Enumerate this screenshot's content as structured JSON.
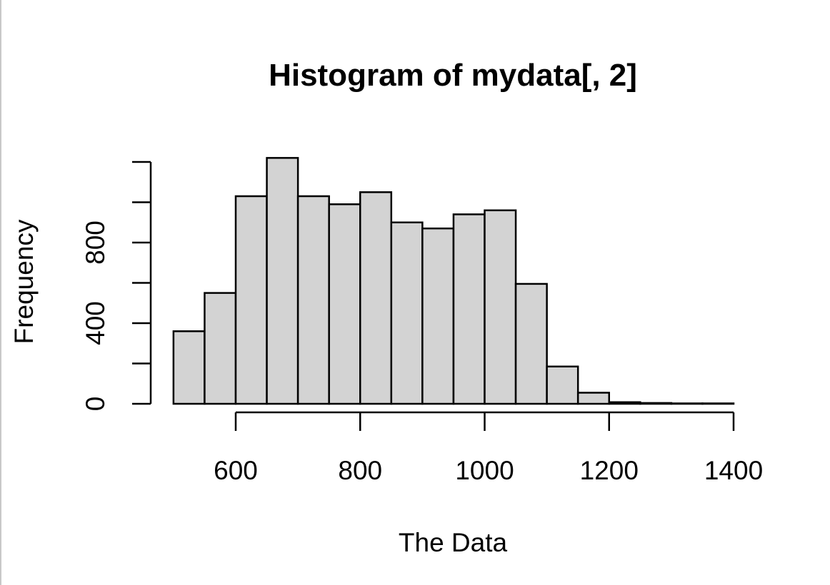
{
  "chart_data": {
    "type": "histogram",
    "title": "Histogram of mydata[, 2]",
    "xlabel": "The Data",
    "ylabel": "Frequency",
    "bin_width": 50,
    "bins": [
      {
        "start": 500,
        "end": 550,
        "count": 360
      },
      {
        "start": 550,
        "end": 600,
        "count": 550
      },
      {
        "start": 600,
        "end": 650,
        "count": 1030
      },
      {
        "start": 650,
        "end": 700,
        "count": 1220
      },
      {
        "start": 700,
        "end": 750,
        "count": 1030
      },
      {
        "start": 750,
        "end": 800,
        "count": 990
      },
      {
        "start": 800,
        "end": 850,
        "count": 1050
      },
      {
        "start": 850,
        "end": 900,
        "count": 900
      },
      {
        "start": 900,
        "end": 950,
        "count": 870
      },
      {
        "start": 950,
        "end": 1000,
        "count": 940
      },
      {
        "start": 1000,
        "end": 1050,
        "count": 960
      },
      {
        "start": 1050,
        "end": 1100,
        "count": 595
      },
      {
        "start": 1100,
        "end": 1150,
        "count": 185
      },
      {
        "start": 1150,
        "end": 1200,
        "count": 55
      },
      {
        "start": 1200,
        "end": 1250,
        "count": 8
      },
      {
        "start": 1250,
        "end": 1300,
        "count": 4
      },
      {
        "start": 1300,
        "end": 1350,
        "count": 2
      },
      {
        "start": 1350,
        "end": 1400,
        "count": 2
      }
    ],
    "x_ticks": [
      600,
      800,
      1000,
      1200,
      1400
    ],
    "x_tick_labels": [
      "600",
      "800",
      "1000",
      "1200",
      "1400"
    ],
    "x_axis_range": [
      600,
      1400
    ],
    "y_ticks": [
      0,
      200,
      400,
      600,
      800,
      1000,
      1200
    ],
    "y_tick_labels": [
      "0",
      "",
      "400",
      "",
      "800",
      "",
      ""
    ],
    "y_axis_range": [
      0,
      1200
    ],
    "grid": false,
    "bar_fill": "#d3d3d3",
    "bar_stroke": "#000000"
  }
}
